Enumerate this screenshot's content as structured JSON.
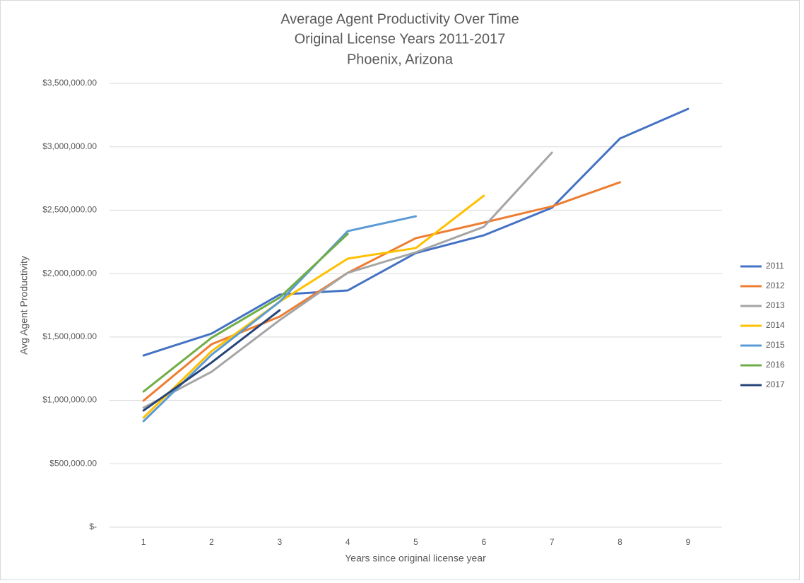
{
  "chart_data": {
    "type": "line",
    "title": "Average Agent Productivity Over Time",
    "subtitle": [
      "Original License Years 2011-2017",
      "Phoenix, Arizona"
    ],
    "x_label": "Years since original license year",
    "y_label": "Avg Agent Productivity",
    "categories": [
      "1",
      "2",
      "3",
      "4",
      "5",
      "6",
      "7",
      "8",
      "9"
    ],
    "ylim": [
      0,
      3500000
    ],
    "yticks": [
      {
        "value": 0,
        "label": "$-"
      },
      {
        "value": 500000,
        "label": "$500,000.00"
      },
      {
        "value": 1000000,
        "label": "$1,000,000.00"
      },
      {
        "value": 1500000,
        "label": "$1,500,000.00"
      },
      {
        "value": 2000000,
        "label": "$2,000,000.00"
      },
      {
        "value": 2500000,
        "label": "$2,500,000.00"
      },
      {
        "value": 3000000,
        "label": "$3,000,000.00"
      },
      {
        "value": 3500000,
        "label": "$3,500,000.00"
      }
    ],
    "grid": true,
    "legend": "right",
    "series": [
      {
        "name": "2011",
        "color": "#4472c4",
        "values": [
          1354000,
          1527000,
          1834000,
          1867000,
          2162000,
          2302000,
          2519000,
          3065000,
          3299000
        ]
      },
      {
        "name": "2012",
        "color": "#ed7d31",
        "values": [
          998000,
          1443000,
          1661000,
          2006000,
          2279000,
          2402000,
          2530000,
          2720000,
          null
        ]
      },
      {
        "name": "2013",
        "color": "#a5a5a5",
        "values": [
          942000,
          1226000,
          1633000,
          2006000,
          2168000,
          2369000,
          2954000,
          null,
          null
        ]
      },
      {
        "name": "2014",
        "color": "#ffc000",
        "values": [
          864000,
          1388000,
          1778000,
          2118000,
          2201000,
          2614000,
          null,
          null,
          null
        ]
      },
      {
        "name": "2015",
        "color": "#5b9bd5",
        "values": [
          836000,
          1360000,
          1778000,
          2335000,
          2452000,
          null,
          null,
          null,
          null
        ]
      },
      {
        "name": "2016",
        "color": "#70ad47",
        "values": [
          1070000,
          1494000,
          1811000,
          2313000,
          null,
          null,
          null,
          null,
          null
        ]
      },
      {
        "name": "2017",
        "color": "#264478",
        "values": [
          920000,
          1299000,
          1711000,
          null,
          null,
          null,
          null,
          null,
          null
        ]
      }
    ]
  }
}
